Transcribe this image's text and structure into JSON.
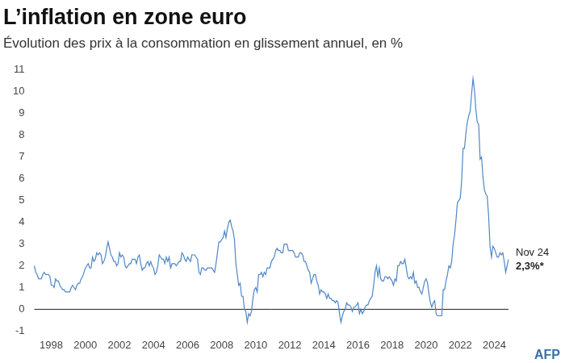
{
  "chart_data": {
    "type": "line",
    "title": "L’inflation en zone euro",
    "subtitle": "Évolution des prix à la consommation en glissement annuel, en %",
    "categories": [
      null,
      null,
      null,
      null,
      null,
      null,
      null,
      null,
      null,
      null,
      null,
      null,
      "1998",
      null,
      null,
      null,
      null,
      null,
      null,
      null,
      null,
      null,
      null,
      null,
      null,
      null,
      null,
      null,
      null,
      null,
      null,
      null,
      null,
      null,
      null,
      null,
      "2000",
      null,
      null,
      null,
      null,
      null,
      null,
      null,
      null,
      null,
      null,
      null,
      null,
      null,
      null,
      null,
      null,
      null,
      null,
      null,
      null,
      null,
      null,
      null,
      "2002",
      null,
      null,
      null,
      null,
      null,
      null,
      null,
      null,
      null,
      null,
      null,
      null,
      null,
      null,
      null,
      null,
      null,
      null,
      null,
      null,
      null,
      null,
      null,
      "2004",
      null,
      null,
      null,
      null,
      null,
      null,
      null,
      null,
      null,
      null,
      null,
      null,
      null,
      null,
      null,
      null,
      null,
      null,
      null,
      null,
      null,
      null,
      null,
      "2006",
      null,
      null,
      null,
      null,
      null,
      null,
      null,
      null,
      null,
      null,
      null,
      null,
      null,
      null,
      null,
      null,
      null,
      null,
      null,
      null,
      null,
      null,
      null,
      "2008",
      null,
      null,
      null,
      null,
      null,
      null,
      null,
      null,
      null,
      null,
      null,
      null,
      null,
      null,
      null,
      null,
      null,
      null,
      null,
      null,
      null,
      null,
      null,
      "2010",
      null,
      null,
      null,
      null,
      null,
      null,
      null,
      null,
      null,
      null,
      null,
      null,
      null,
      null,
      null,
      null,
      null,
      null,
      null,
      null,
      null,
      null,
      null,
      "2012",
      null,
      null,
      null,
      null,
      null,
      null,
      null,
      null,
      null,
      null,
      null,
      null,
      null,
      null,
      null,
      null,
      null,
      null,
      null,
      null,
      null,
      null,
      null,
      "2014",
      null,
      null,
      null,
      null,
      null,
      null,
      null,
      null,
      null,
      null,
      null,
      null,
      null,
      null,
      null,
      null,
      null,
      null,
      null,
      null,
      null,
      null,
      null,
      "2016",
      null,
      null,
      null,
      null,
      null,
      null,
      null,
      null,
      null,
      null,
      null,
      null,
      null,
      null,
      null,
      null,
      null,
      null,
      null,
      null,
      null,
      null,
      null,
      "2018",
      null,
      null,
      null,
      null,
      null,
      null,
      null,
      null,
      null,
      null,
      null,
      null,
      null,
      null,
      null,
      null,
      null,
      null,
      null,
      null,
      null,
      null,
      null,
      "2020",
      null,
      null,
      null,
      null,
      null,
      null,
      null,
      null,
      null,
      null,
      null,
      null,
      null,
      null,
      null,
      null,
      null,
      null,
      null,
      null,
      null,
      null,
      null,
      "2022",
      null,
      null,
      null,
      null,
      null,
      null,
      null,
      null,
      null,
      null,
      null,
      null,
      null,
      null,
      null,
      null,
      null,
      null,
      null,
      null,
      null,
      null,
      null,
      "2024",
      null,
      null,
      null,
      null,
      null,
      null,
      null,
      null,
      null,
      null
    ],
    "values": [
      2.0,
      1.7,
      1.6,
      1.4,
      1.4,
      1.4,
      1.6,
      1.7,
      1.6,
      1.6,
      1.6,
      1.5,
      1.1,
      1.1,
      1.0,
      1.4,
      1.3,
      1.3,
      1.1,
      1.0,
      0.9,
      0.9,
      0.8,
      0.8,
      0.8,
      0.8,
      1.0,
      1.1,
      1.0,
      0.9,
      1.1,
      1.2,
      1.2,
      1.4,
      1.5,
      1.7,
      1.9,
      2.0,
      2.1,
      1.9,
      1.9,
      2.4,
      2.2,
      2.3,
      2.6,
      2.5,
      2.6,
      2.5,
      2.1,
      2.2,
      2.4,
      2.8,
      3.1,
      2.8,
      2.5,
      2.4,
      2.2,
      2.2,
      2.0,
      2.1,
      2.6,
      2.4,
      2.5,
      2.4,
      2.0,
      1.9,
      2.0,
      2.1,
      2.1,
      2.3,
      2.3,
      2.3,
      2.1,
      2.4,
      2.5,
      2.1,
      1.8,
      1.9,
      1.9,
      2.1,
      2.2,
      2.0,
      2.2,
      2.0,
      1.9,
      1.6,
      1.7,
      2.0,
      2.5,
      2.4,
      2.3,
      2.3,
      2.1,
      2.4,
      2.2,
      2.4,
      1.9,
      2.1,
      2.1,
      2.1,
      2.0,
      2.1,
      2.2,
      2.2,
      2.6,
      2.5,
      2.3,
      2.2,
      2.4,
      2.3,
      2.2,
      2.5,
      2.5,
      2.5,
      2.4,
      2.3,
      1.7,
      1.6,
      1.9,
      1.9,
      1.8,
      1.8,
      1.9,
      1.9,
      1.9,
      1.9,
      1.8,
      1.7,
      2.1,
      2.6,
      3.1,
      3.1,
      3.2,
      3.3,
      3.6,
      3.3,
      3.7,
      4.0,
      4.1,
      3.8,
      3.6,
      3.2,
      2.1,
      1.6,
      1.1,
      1.2,
      0.6,
      0.6,
      0.0,
      -0.1,
      -0.6,
      -0.2,
      -0.3,
      -0.1,
      0.5,
      0.9,
      1.0,
      0.8,
      1.6,
      1.6,
      1.7,
      1.5,
      1.7,
      1.6,
      1.9,
      1.9,
      1.9,
      2.2,
      2.3,
      2.4,
      2.7,
      2.8,
      2.7,
      2.7,
      2.6,
      2.6,
      3.0,
      3.0,
      3.0,
      2.7,
      2.7,
      2.7,
      2.7,
      2.6,
      2.4,
      2.4,
      2.4,
      2.6,
      2.6,
      2.5,
      2.2,
      2.2,
      2.0,
      1.8,
      1.7,
      1.2,
      1.4,
      1.6,
      1.6,
      1.3,
      1.1,
      0.7,
      0.9,
      0.8,
      0.8,
      0.7,
      0.5,
      0.7,
      0.5,
      0.5,
      0.4,
      0.4,
      0.3,
      0.4,
      0.3,
      -0.2,
      -0.6,
      -0.3,
      -0.1,
      0.0,
      0.3,
      0.2,
      0.2,
      0.1,
      -0.1,
      0.1,
      0.1,
      0.2,
      0.3,
      -0.2,
      0.0,
      -0.2,
      -0.1,
      0.1,
      0.2,
      0.2,
      0.4,
      0.5,
      0.6,
      1.1,
      1.7,
      2.0,
      1.5,
      1.9,
      1.4,
      1.3,
      1.3,
      1.5,
      1.5,
      1.4,
      1.5,
      1.4,
      1.3,
      1.1,
      1.4,
      1.3,
      2.0,
      2.0,
      2.2,
      2.1,
      2.1,
      2.3,
      1.9,
      1.5,
      1.4,
      1.5,
      1.4,
      1.7,
      1.2,
      1.3,
      1.0,
      1.0,
      0.8,
      0.7,
      1.0,
      1.3,
      1.4,
      1.2,
      0.7,
      0.3,
      0.1,
      0.3,
      0.4,
      -0.2,
      -0.3,
      -0.3,
      -0.3,
      -0.3,
      0.9,
      0.9,
      1.3,
      1.6,
      2.0,
      1.9,
      2.2,
      3.0,
      3.4,
      4.1,
      4.9,
      5.0,
      5.1,
      5.9,
      7.4,
      7.4,
      8.1,
      8.6,
      8.9,
      9.1,
      9.9,
      10.6,
      10.1,
      9.2,
      8.6,
      8.5,
      6.9,
      7.0,
      6.1,
      5.5,
      5.3,
      5.2,
      4.3,
      2.9,
      2.4,
      2.9,
      2.8,
      2.6,
      2.4,
      2.4,
      2.6,
      2.5,
      2.6,
      2.2,
      1.7,
      2.0,
      2.3
    ],
    "color": "#4f86c6",
    "ylim": [
      -1,
      11
    ],
    "yticks": [
      -1,
      0,
      1,
      2,
      3,
      4,
      5,
      6,
      7,
      8,
      9,
      10,
      11
    ],
    "grid": false,
    "annotations": [
      {
        "text": "Nov 24"
      },
      {
        "text": "2,3%*"
      }
    ],
    "source": "AFP"
  }
}
